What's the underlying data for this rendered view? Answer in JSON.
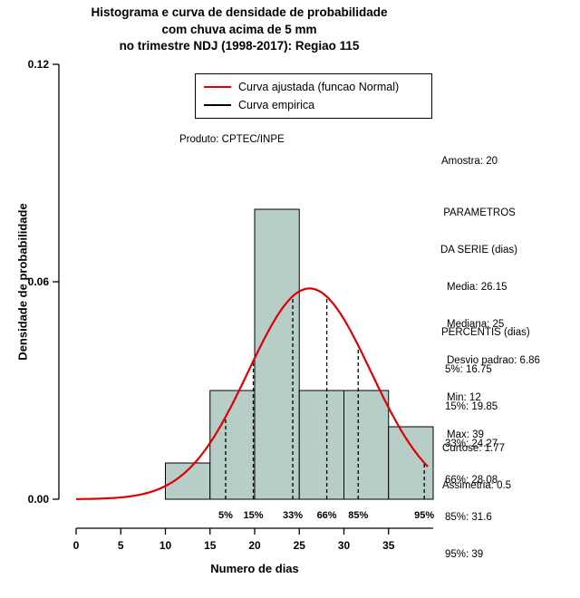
{
  "title": {
    "line1": "Histograma e curva de densidade de probabilidade",
    "line2": "com chuva acima de 5 mm",
    "line3": "no trimestre NDJ (1998-2017): Regiao 115"
  },
  "chart_data": {
    "type": "histogram+density-line",
    "xlabel": "Numero de dias",
    "ylabel": "Densidade de probabilidade",
    "xlim": [
      0,
      40
    ],
    "ylim": [
      0,
      0.12
    ],
    "x_ticks": [
      0,
      5,
      10,
      15,
      20,
      25,
      30,
      35
    ],
    "y_ticks": [
      "0.00",
      "0.06",
      "0.12"
    ],
    "y_tick_values": [
      0,
      0.06,
      0.12
    ],
    "histogram": {
      "breaks": [
        10,
        15,
        20,
        25,
        30,
        35,
        40
      ],
      "densities": [
        0.01,
        0.03,
        0.08,
        0.03,
        0.03,
        0.02
      ],
      "fill": "#b7cdc8",
      "stroke": "#000000"
    },
    "normal_curve": {
      "mean": 26.15,
      "sd": 6.86,
      "color": "#e10000",
      "x_range": [
        0,
        39.4
      ]
    },
    "percentile_lines": [
      {
        "label": "5%",
        "x": 16.75
      },
      {
        "label": "15%",
        "x": 19.85
      },
      {
        "label": "33%",
        "x": 24.27
      },
      {
        "label": "66%",
        "x": 28.08
      },
      {
        "label": "85%",
        "x": 31.6
      },
      {
        "label": "95%",
        "x": 39
      }
    ],
    "annotation": "Produto: CPTEC/INPE",
    "legend": [
      {
        "label": "Curva ajustada (funcao Normal)",
        "color": "#e10000"
      },
      {
        "label": "Curva empirica",
        "color": "#000000"
      }
    ]
  },
  "stats": {
    "amostra": "Amostra: 20",
    "params_header1": " PARAMETROS",
    "params_header2": "DA SERIE (dias)",
    "params": [
      "Media: 26.15",
      "Mediana: 25",
      "Desvio padrao: 6.86",
      "Min: 12",
      "Max: 39"
    ],
    "percentis_header": "PERCENTIS (dias)",
    "percentis": [
      "5%: 16.75",
      "15%: 19.85",
      "33%: 24.27",
      "66%: 28.08",
      "85%: 31.6",
      "95%: 39"
    ],
    "curtose": "Curtose: 1.77",
    "assimetria": "Assimetria: 0.5"
  }
}
